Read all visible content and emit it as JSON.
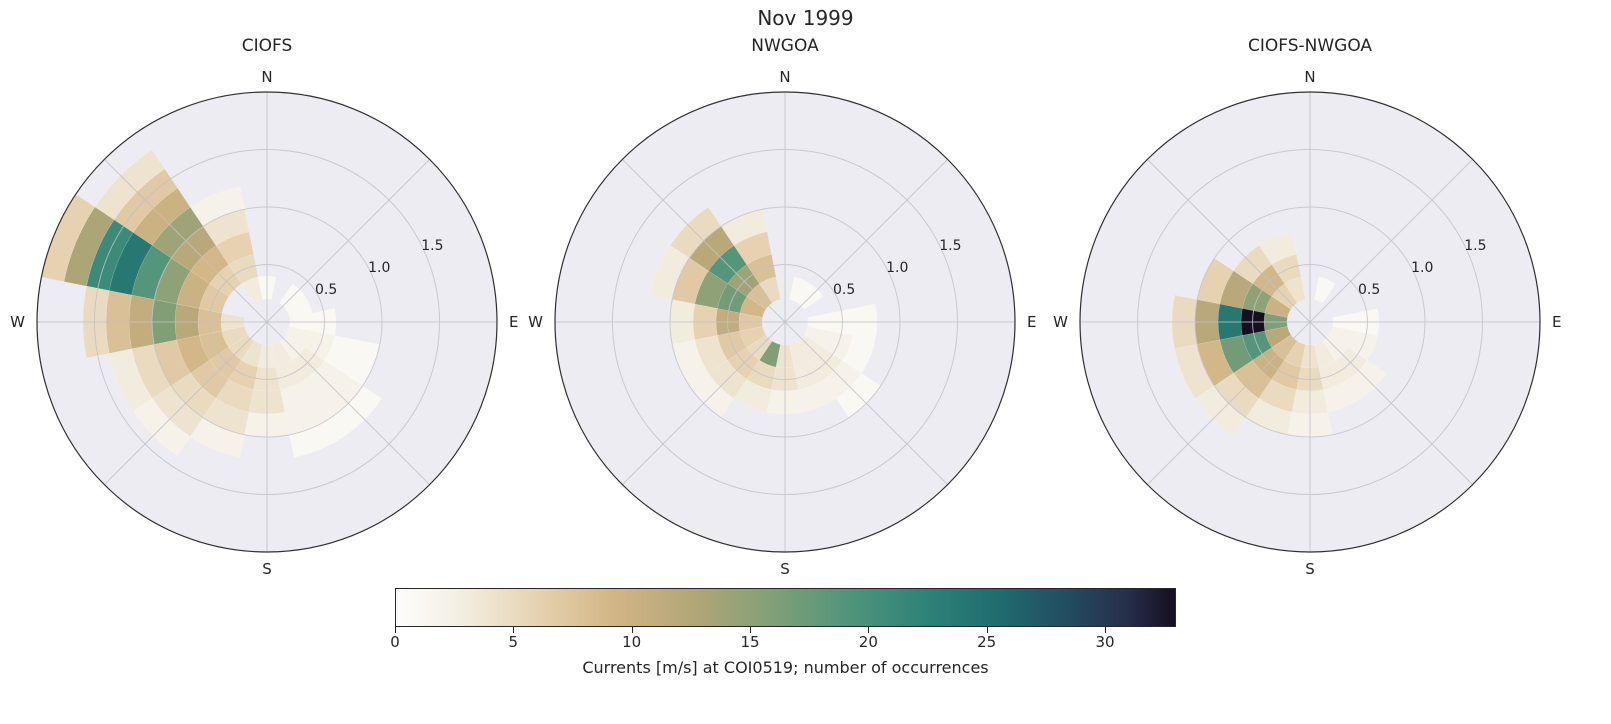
{
  "suptitle": "Nov 1999",
  "chart_data": {
    "type": "heatmap",
    "layout": "polar-rose-histogram",
    "cells_format": "[direction_bin_index (0=N, clockwise, 16 bins of 22.5deg), radial_bin_index (bin width r_bin_width), occurrence_count]",
    "colorbar": {
      "label": "Currents [m/s] at COI0519; number of occurrences",
      "ticks": [
        0,
        5,
        10,
        15,
        20,
        25,
        30
      ],
      "vmin": 0,
      "vmax": 33,
      "stops": [
        {
          "pos": 0.0,
          "color": "#fdfdfb"
        },
        {
          "pos": 0.08,
          "color": "#f4efe3"
        },
        {
          "pos": 0.18,
          "color": "#e6d3b2"
        },
        {
          "pos": 0.28,
          "color": "#d2b585"
        },
        {
          "pos": 0.38,
          "color": "#b3a678"
        },
        {
          "pos": 0.48,
          "color": "#83a077"
        },
        {
          "pos": 0.58,
          "color": "#52947b"
        },
        {
          "pos": 0.68,
          "color": "#2e8378"
        },
        {
          "pos": 0.78,
          "color": "#1f6a6e"
        },
        {
          "pos": 0.87,
          "color": "#24495f"
        },
        {
          "pos": 0.94,
          "color": "#262e49"
        },
        {
          "pos": 1.0,
          "color": "#160f21"
        }
      ]
    },
    "axes_style": {
      "background": "#ececf2",
      "grid_color": "#c0c0c8",
      "outline_color": "#2f2f2f"
    },
    "subplots": [
      {
        "title": "CIOFS",
        "compass": {
          "n": "N",
          "e": "E",
          "s": "S",
          "w": "W"
        },
        "radial_ticks": [
          0.5,
          1.0,
          1.5
        ],
        "r_max": 2.0,
        "dir_bins": 16,
        "r_bin_width": 0.2,
        "cells": [
          [
            15,
            1,
            3
          ],
          [
            15,
            2,
            5
          ],
          [
            15,
            3,
            6
          ],
          [
            15,
            4,
            4
          ],
          [
            15,
            5,
            2
          ],
          [
            14,
            2,
            6
          ],
          [
            14,
            3,
            9
          ],
          [
            14,
            4,
            12
          ],
          [
            14,
            5,
            14
          ],
          [
            14,
            6,
            10
          ],
          [
            14,
            7,
            7
          ],
          [
            14,
            8,
            4
          ],
          [
            13,
            2,
            7
          ],
          [
            13,
            3,
            10
          ],
          [
            13,
            4,
            15
          ],
          [
            13,
            5,
            19
          ],
          [
            13,
            6,
            24
          ],
          [
            13,
            7,
            21
          ],
          [
            13,
            8,
            13
          ],
          [
            13,
            9,
            6
          ],
          [
            12,
            1,
            4
          ],
          [
            12,
            2,
            8
          ],
          [
            12,
            3,
            12
          ],
          [
            12,
            4,
            16
          ],
          [
            12,
            5,
            11
          ],
          [
            12,
            6,
            8
          ],
          [
            12,
            7,
            5
          ],
          [
            11,
            1,
            5
          ],
          [
            11,
            2,
            8
          ],
          [
            11,
            3,
            9
          ],
          [
            11,
            4,
            7
          ],
          [
            11,
            5,
            5
          ],
          [
            11,
            6,
            3
          ],
          [
            10,
            1,
            5
          ],
          [
            10,
            2,
            7
          ],
          [
            10,
            3,
            7
          ],
          [
            10,
            4,
            5
          ],
          [
            10,
            5,
            4
          ],
          [
            10,
            6,
            2
          ],
          [
            9,
            1,
            4
          ],
          [
            9,
            2,
            6
          ],
          [
            9,
            3,
            5
          ],
          [
            9,
            4,
            4
          ],
          [
            9,
            5,
            2
          ],
          [
            8,
            1,
            3
          ],
          [
            8,
            2,
            4
          ],
          [
            8,
            3,
            4
          ],
          [
            8,
            4,
            2
          ],
          [
            7,
            1,
            3
          ],
          [
            7,
            2,
            3
          ],
          [
            7,
            3,
            2
          ],
          [
            7,
            4,
            2
          ],
          [
            7,
            5,
            1
          ],
          [
            6,
            1,
            2
          ],
          [
            6,
            2,
            3
          ],
          [
            6,
            3,
            2
          ],
          [
            6,
            4,
            2
          ],
          [
            6,
            5,
            1
          ],
          [
            5,
            1,
            2
          ],
          [
            5,
            2,
            2
          ],
          [
            5,
            3,
            1
          ],
          [
            5,
            4,
            1
          ],
          [
            4,
            1,
            1
          ],
          [
            4,
            2,
            1
          ],
          [
            3,
            1,
            1
          ],
          [
            2,
            1,
            1
          ],
          [
            0,
            1,
            1
          ]
        ]
      },
      {
        "title": "NWGOA",
        "compass": {
          "n": "N",
          "e": "E",
          "s": "S",
          "w": "W"
        },
        "radial_ticks": [
          0.5,
          1.0,
          1.5
        ],
        "r_max": 2.0,
        "dir_bins": 16,
        "r_bin_width": 0.2,
        "cells": [
          [
            15,
            1,
            5
          ],
          [
            15,
            2,
            8
          ],
          [
            15,
            3,
            6
          ],
          [
            15,
            4,
            3
          ],
          [
            14,
            1,
            8
          ],
          [
            14,
            2,
            14
          ],
          [
            14,
            3,
            19
          ],
          [
            14,
            4,
            12
          ],
          [
            14,
            5,
            5
          ],
          [
            13,
            1,
            9
          ],
          [
            13,
            2,
            17
          ],
          [
            13,
            3,
            15
          ],
          [
            13,
            4,
            7
          ],
          [
            13,
            5,
            3
          ],
          [
            12,
            1,
            7
          ],
          [
            12,
            2,
            11
          ],
          [
            12,
            3,
            6
          ],
          [
            12,
            4,
            3
          ],
          [
            11,
            1,
            6
          ],
          [
            11,
            2,
            7
          ],
          [
            11,
            3,
            4
          ],
          [
            11,
            4,
            2
          ],
          [
            10,
            1,
            5
          ],
          [
            10,
            2,
            6
          ],
          [
            10,
            3,
            4
          ],
          [
            10,
            4,
            2
          ],
          [
            9,
            1,
            16
          ],
          [
            9,
            2,
            5
          ],
          [
            9,
            3,
            3
          ],
          [
            8,
            1,
            4
          ],
          [
            8,
            2,
            4
          ],
          [
            8,
            3,
            2
          ],
          [
            7,
            1,
            3
          ],
          [
            7,
            2,
            3
          ],
          [
            7,
            3,
            2
          ],
          [
            6,
            1,
            3
          ],
          [
            6,
            2,
            3
          ],
          [
            6,
            3,
            2
          ],
          [
            6,
            4,
            1
          ],
          [
            5,
            1,
            2
          ],
          [
            5,
            2,
            2
          ],
          [
            5,
            3,
            1
          ],
          [
            4,
            1,
            1
          ],
          [
            4,
            2,
            1
          ],
          [
            4,
            3,
            1
          ],
          [
            2,
            1,
            1
          ],
          [
            1,
            1,
            1
          ]
        ]
      },
      {
        "title": "CIOFS-NWGOA",
        "compass": {
          "n": "N",
          "e": "E",
          "s": "S",
          "w": "W"
        },
        "radial_ticks": [
          0.5,
          1.0,
          1.5
        ],
        "r_max": 2.0,
        "dir_bins": 16,
        "r_bin_width": 0.2,
        "cells": [
          [
            15,
            1,
            4
          ],
          [
            15,
            2,
            5
          ],
          [
            15,
            3,
            3
          ],
          [
            14,
            1,
            6
          ],
          [
            14,
            2,
            9
          ],
          [
            14,
            3,
            5
          ],
          [
            13,
            1,
            10
          ],
          [
            13,
            2,
            15
          ],
          [
            13,
            3,
            12
          ],
          [
            13,
            4,
            6
          ],
          [
            12,
            1,
            16
          ],
          [
            12,
            2,
            33
          ],
          [
            12,
            3,
            24
          ],
          [
            12,
            4,
            12
          ],
          [
            12,
            5,
            5
          ],
          [
            11,
            1,
            12
          ],
          [
            11,
            2,
            19
          ],
          [
            11,
            3,
            17
          ],
          [
            11,
            4,
            9
          ],
          [
            11,
            5,
            4
          ],
          [
            10,
            1,
            8
          ],
          [
            10,
            2,
            10
          ],
          [
            10,
            3,
            8
          ],
          [
            10,
            4,
            5
          ],
          [
            10,
            5,
            3
          ],
          [
            9,
            1,
            6
          ],
          [
            9,
            2,
            7
          ],
          [
            9,
            3,
            5
          ],
          [
            9,
            4,
            3
          ],
          [
            8,
            1,
            4
          ],
          [
            8,
            2,
            5
          ],
          [
            8,
            3,
            3
          ],
          [
            8,
            4,
            2
          ],
          [
            7,
            1,
            3
          ],
          [
            7,
            2,
            3
          ],
          [
            7,
            3,
            2
          ],
          [
            6,
            1,
            2
          ],
          [
            6,
            2,
            3
          ],
          [
            6,
            3,
            2
          ],
          [
            5,
            1,
            2
          ],
          [
            5,
            2,
            2
          ],
          [
            4,
            1,
            1
          ],
          [
            4,
            2,
            1
          ],
          [
            1,
            1,
            1
          ]
        ]
      }
    ]
  }
}
